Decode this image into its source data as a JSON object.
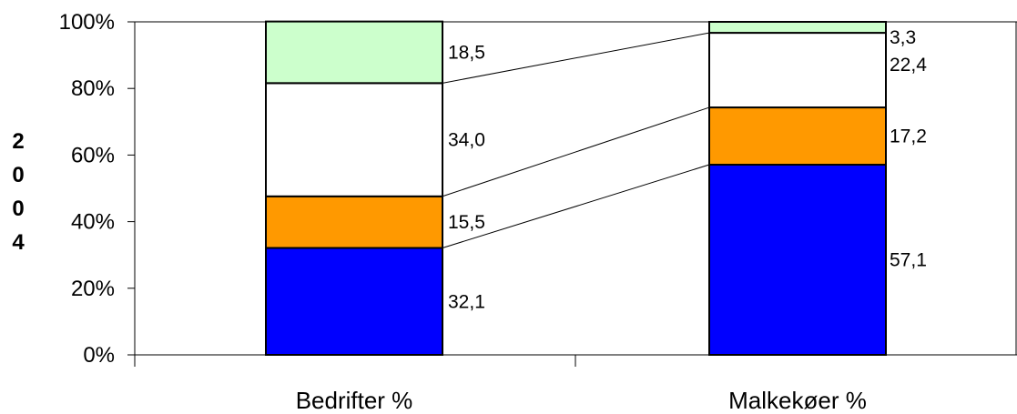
{
  "chart_data": {
    "type": "bar",
    "stacked": true,
    "percent": true,
    "categories": [
      "Bedrifter %",
      "Malkekøer %"
    ],
    "series": [
      {
        "values": [
          32.1,
          57.1
        ],
        "labels": [
          "32,1",
          "57,1"
        ],
        "color": "#0000FF"
      },
      {
        "values": [
          15.5,
          17.2
        ],
        "labels": [
          "15,5",
          "17,2"
        ],
        "color": "#FF9900"
      },
      {
        "values": [
          34.0,
          22.4
        ],
        "labels": [
          "34,0",
          "22,4"
        ],
        "color": "#FFFFFF"
      },
      {
        "values": [
          18.5,
          3.3
        ],
        "labels": [
          "18,5",
          "3,3"
        ],
        "color": "#CCFFCC"
      }
    ],
    "ylim": [
      0,
      100
    ],
    "yticks": [
      "0%",
      "20%",
      "40%",
      "60%",
      "80%",
      "100%"
    ],
    "ylabel": "2004",
    "grid": false,
    "series_lines": true
  }
}
